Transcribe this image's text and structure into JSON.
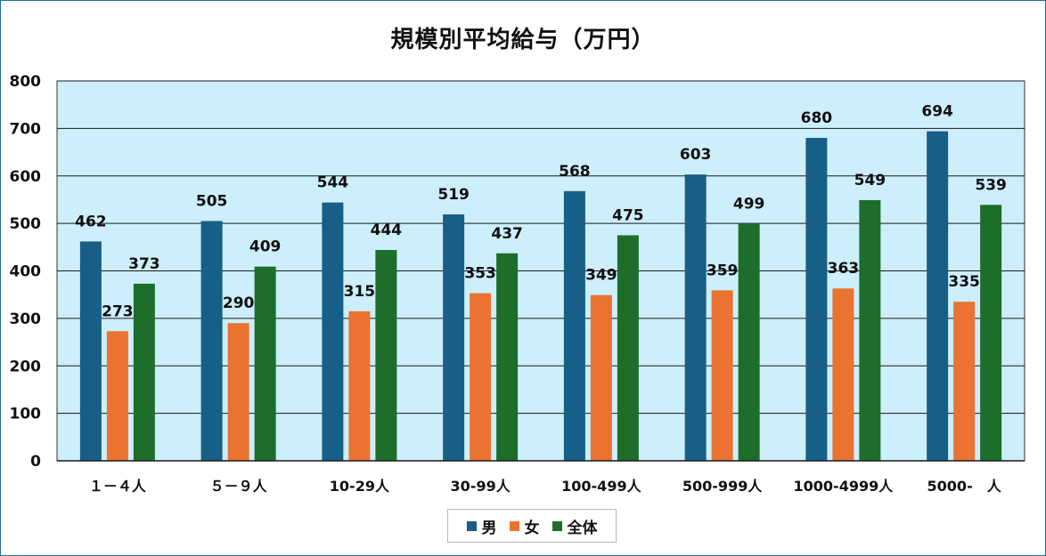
{
  "chart_data": {
    "type": "bar",
    "title": "規模別平均給与（万円）",
    "categories": [
      "１－４人",
      "５－９人",
      "10-29人",
      "30-99人",
      "100-499人",
      "500-999人",
      "1000-4999人",
      "5000-　人"
    ],
    "series": [
      {
        "name": "男",
        "color": "#175f86",
        "values": [
          462,
          505,
          544,
          519,
          568,
          603,
          680,
          694
        ]
      },
      {
        "name": "女",
        "color": "#ea7332",
        "values": [
          273,
          290,
          315,
          353,
          349,
          359,
          363,
          335
        ]
      },
      {
        "name": "全体",
        "color": "#1c6e2a",
        "values": [
          373,
          409,
          444,
          437,
          475,
          499,
          549,
          539
        ]
      }
    ],
    "ylim": [
      0,
      800
    ],
    "yticks": [
      0,
      100,
      200,
      300,
      400,
      500,
      600,
      700,
      800
    ],
    "grid": true,
    "plot_background": "#cdeefb",
    "data_labels": true,
    "legend_position": "bottom"
  }
}
